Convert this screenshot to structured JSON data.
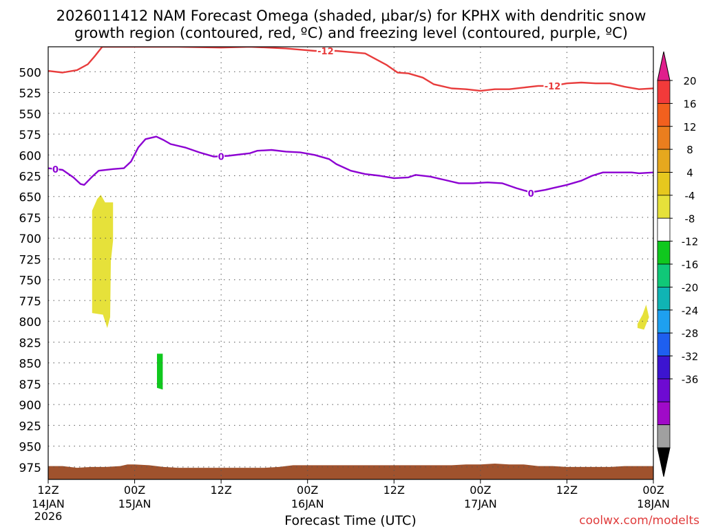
{
  "chart_data": {
    "type": "heatmap",
    "title_line1": "2026011412 NAM Forecast Omega (shaded, μbar/s) for KPHX with dendritic snow",
    "title_line2": "growth region (contoured, red, ºC) and freezing level (contoured, purple, ºC)",
    "xlabel": "Forecast Time (UTC)",
    "credit": "coolwx.com/modelts",
    "x_range_hours": [
      0,
      84
    ],
    "y_scale": "pressure (hPa), inverted",
    "y_range": [
      470,
      990
    ],
    "y_ticks": [
      500,
      525,
      550,
      575,
      600,
      625,
      650,
      675,
      700,
      725,
      750,
      775,
      800,
      825,
      850,
      875,
      900,
      925,
      950,
      975
    ],
    "x_ticks": [
      {
        "h": 0,
        "line1": "12Z",
        "line2": "14JAN",
        "line3": "2026"
      },
      {
        "h": 12,
        "line1": "00Z",
        "line2": "15JAN",
        "line3": ""
      },
      {
        "h": 24,
        "line1": "12Z",
        "line2": "",
        "line3": ""
      },
      {
        "h": 36,
        "line1": "00Z",
        "line2": "16JAN",
        "line3": ""
      },
      {
        "h": 48,
        "line1": "12Z",
        "line2": "",
        "line3": ""
      },
      {
        "h": 60,
        "line1": "00Z",
        "line2": "17JAN",
        "line3": ""
      },
      {
        "h": 72,
        "line1": "12Z",
        "line2": "",
        "line3": ""
      },
      {
        "h": 84,
        "line1": "00Z",
        "line2": "18JAN",
        "line3": ""
      }
    ],
    "grid": true,
    "colorbar": {
      "labels": [
        "20",
        "16",
        "12",
        "8",
        "4",
        "-4",
        "-8",
        "-12",
        "-16",
        "-20",
        "-24",
        "-28",
        "-32",
        "-36"
      ],
      "colors": [
        "#f23a3a",
        "#f2601e",
        "#ea7e1e",
        "#e6a81e",
        "#e6c81e",
        "#e6e13a",
        "#ffffff",
        "#10c81e",
        "#10c878",
        "#10b4b4",
        "#1ea0f0",
        "#1e5ff0",
        "#3c14d0",
        "#6e0ad2",
        "#a00ac8",
        "#a0a0a0"
      ],
      "top_arrow_color": "#e01e8c",
      "bottom_arrow_color": "#000000"
    },
    "series": [
      {
        "name": "-12",
        "color": "#e83c3c",
        "label_at": [
          [
            38.5,
            475
          ],
          [
            70,
            517
          ]
        ],
        "points": [
          [
            0,
            499
          ],
          [
            2,
            501
          ],
          [
            4,
            498
          ],
          [
            5.5,
            491
          ],
          [
            6.5,
            481
          ],
          [
            7.5,
            470
          ],
          [
            18,
            470
          ],
          [
            24,
            471
          ],
          [
            28,
            470
          ],
          [
            33,
            472
          ],
          [
            37,
            475
          ],
          [
            40,
            475
          ],
          [
            44,
            478
          ],
          [
            47,
            492
          ],
          [
            48.5,
            501
          ],
          [
            50,
            502
          ],
          [
            52,
            507
          ],
          [
            53.5,
            515
          ],
          [
            56,
            520
          ],
          [
            58,
            521
          ],
          [
            60,
            523
          ],
          [
            62,
            521
          ],
          [
            64,
            521
          ],
          [
            66,
            519
          ],
          [
            68,
            517
          ],
          [
            70,
            517
          ],
          [
            72,
            514
          ],
          [
            74,
            513
          ],
          [
            76,
            514
          ],
          [
            78,
            514
          ],
          [
            80,
            518
          ],
          [
            82,
            521
          ],
          [
            84,
            520
          ]
        ]
      },
      {
        "name": "0",
        "color": "#8c00d2",
        "label_at": [
          [
            1,
            617
          ],
          [
            24,
            602
          ],
          [
            67,
            646
          ]
        ],
        "points": [
          [
            0,
            616
          ],
          [
            2,
            618
          ],
          [
            3.5,
            627
          ],
          [
            4.5,
            635
          ],
          [
            5,
            636
          ],
          [
            6,
            627
          ],
          [
            7,
            619
          ],
          [
            9,
            617
          ],
          [
            10.5,
            616
          ],
          [
            11.5,
            608
          ],
          [
            12.5,
            591
          ],
          [
            13.5,
            581
          ],
          [
            15,
            578
          ],
          [
            16,
            582
          ],
          [
            17,
            587
          ],
          [
            19,
            591
          ],
          [
            21,
            597
          ],
          [
            23,
            602
          ],
          [
            25,
            601
          ],
          [
            28,
            598
          ],
          [
            29,
            595
          ],
          [
            31,
            594
          ],
          [
            33,
            596
          ],
          [
            35,
            597
          ],
          [
            37,
            600
          ],
          [
            39,
            605
          ],
          [
            40,
            611
          ],
          [
            42,
            619
          ],
          [
            44,
            623
          ],
          [
            46,
            625
          ],
          [
            48,
            628
          ],
          [
            50,
            627
          ],
          [
            51,
            624
          ],
          [
            53,
            626
          ],
          [
            55,
            630
          ],
          [
            57,
            634
          ],
          [
            59,
            634
          ],
          [
            61,
            633
          ],
          [
            63,
            634
          ],
          [
            65,
            640
          ],
          [
            67,
            645
          ],
          [
            69,
            642
          ],
          [
            70,
            640
          ],
          [
            72,
            636
          ],
          [
            74,
            631
          ],
          [
            75.5,
            625
          ],
          [
            77,
            621
          ],
          [
            79,
            621
          ],
          [
            81,
            621
          ],
          [
            82,
            622
          ],
          [
            84,
            621
          ]
        ]
      }
    ],
    "filled_regions": [
      {
        "level": "4 to 8",
        "color": "#e6e13a",
        "polygon": [
          [
            6.1,
            667
          ],
          [
            6.8,
            653
          ],
          [
            7.3,
            648
          ],
          [
            7.9,
            657
          ],
          [
            9,
            657
          ],
          [
            9,
            703
          ],
          [
            8.7,
            728
          ],
          [
            8.6,
            795
          ],
          [
            8.2,
            808
          ],
          [
            7.6,
            792
          ],
          [
            6.1,
            790
          ]
        ]
      },
      {
        "level": "-4 to -8",
        "color": "#10c81e",
        "polygon": [
          [
            15.1,
            839
          ],
          [
            15.9,
            839
          ],
          [
            15.9,
            882
          ],
          [
            15.1,
            880
          ]
        ]
      },
      {
        "level": "4 to 8",
        "color": "#e6e13a",
        "polygon": [
          [
            81.8,
            803
          ],
          [
            82.5,
            792
          ],
          [
            83.0,
            780
          ],
          [
            83.4,
            795
          ],
          [
            82.7,
            810
          ],
          [
            81.8,
            808
          ]
        ]
      }
    ],
    "terrain": {
      "color": "#a0522d",
      "points": [
        [
          0,
          974
        ],
        [
          2,
          974
        ],
        [
          4,
          976
        ],
        [
          6,
          975
        ],
        [
          8,
          975
        ],
        [
          10,
          974
        ],
        [
          11,
          972
        ],
        [
          12,
          972
        ],
        [
          14,
          973
        ],
        [
          16,
          975
        ],
        [
          18,
          976
        ],
        [
          20,
          976
        ],
        [
          22,
          976
        ],
        [
          24,
          976
        ],
        [
          28,
          976
        ],
        [
          30,
          976
        ],
        [
          32,
          975
        ],
        [
          34,
          973
        ],
        [
          36,
          973
        ],
        [
          40,
          973
        ],
        [
          44,
          973
        ],
        [
          48,
          973
        ],
        [
          50,
          973
        ],
        [
          52,
          973
        ],
        [
          56,
          973
        ],
        [
          58,
          972
        ],
        [
          60,
          972
        ],
        [
          62,
          971
        ],
        [
          64,
          972
        ],
        [
          66,
          972
        ],
        [
          68,
          974
        ],
        [
          70,
          974
        ],
        [
          72,
          975
        ],
        [
          76,
          975
        ],
        [
          78,
          975
        ],
        [
          80,
          974
        ],
        [
          82,
          974
        ],
        [
          84,
          974
        ]
      ]
    }
  }
}
